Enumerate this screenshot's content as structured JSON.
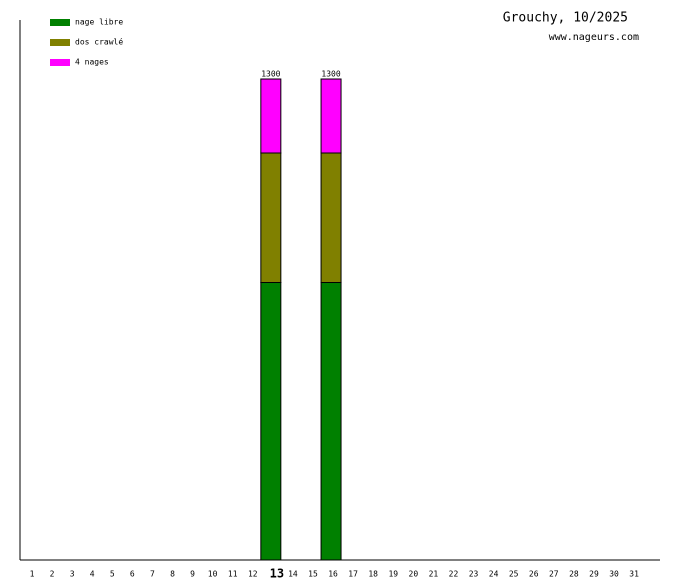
{
  "chart_data": {
    "type": "stacked_bar",
    "title": "Grouchy, 10/2025",
    "subtitle": "www.nageurs.com",
    "categories": [
      "1",
      "2",
      "3",
      "4",
      "5",
      "6",
      "7",
      "8",
      "9",
      "10",
      "11",
      "12",
      "13",
      "14",
      "15",
      "16",
      "17",
      "18",
      "19",
      "20",
      "21",
      "22",
      "23",
      "24",
      "25",
      "26",
      "27",
      "28",
      "29",
      "30",
      "31"
    ],
    "highlight": "13",
    "series": [
      {
        "name": "nage libre",
        "color": "#008000",
        "values": [
          0,
          0,
          0,
          0,
          0,
          0,
          0,
          0,
          0,
          0,
          0,
          0,
          750,
          0,
          0,
          750,
          0,
          0,
          0,
          0,
          0,
          0,
          0,
          0,
          0,
          0,
          0,
          0,
          0,
          0,
          0
        ]
      },
      {
        "name": "dos crawlé",
        "color": "#808000",
        "values": [
          0,
          0,
          0,
          0,
          0,
          0,
          0,
          0,
          0,
          0,
          0,
          0,
          350,
          0,
          0,
          350,
          0,
          0,
          0,
          0,
          0,
          0,
          0,
          0,
          0,
          0,
          0,
          0,
          0,
          0,
          0
        ]
      },
      {
        "name": "4 nages",
        "color": "#ff00ff",
        "values": [
          0,
          0,
          0,
          0,
          0,
          0,
          0,
          0,
          0,
          0,
          0,
          0,
          200,
          0,
          0,
          200,
          0,
          0,
          0,
          0,
          0,
          0,
          0,
          0,
          0,
          0,
          0,
          0,
          0,
          0,
          0
        ]
      }
    ],
    "totals": [
      null,
      null,
      null,
      null,
      null,
      null,
      null,
      null,
      null,
      null,
      null,
      null,
      1300,
      null,
      null,
      1300,
      null,
      null,
      null,
      null,
      null,
      null,
      null,
      null,
      null,
      null,
      null,
      null,
      null,
      null,
      null
    ],
    "ylim": [
      0,
      1300
    ],
    "legend": "top-left"
  }
}
